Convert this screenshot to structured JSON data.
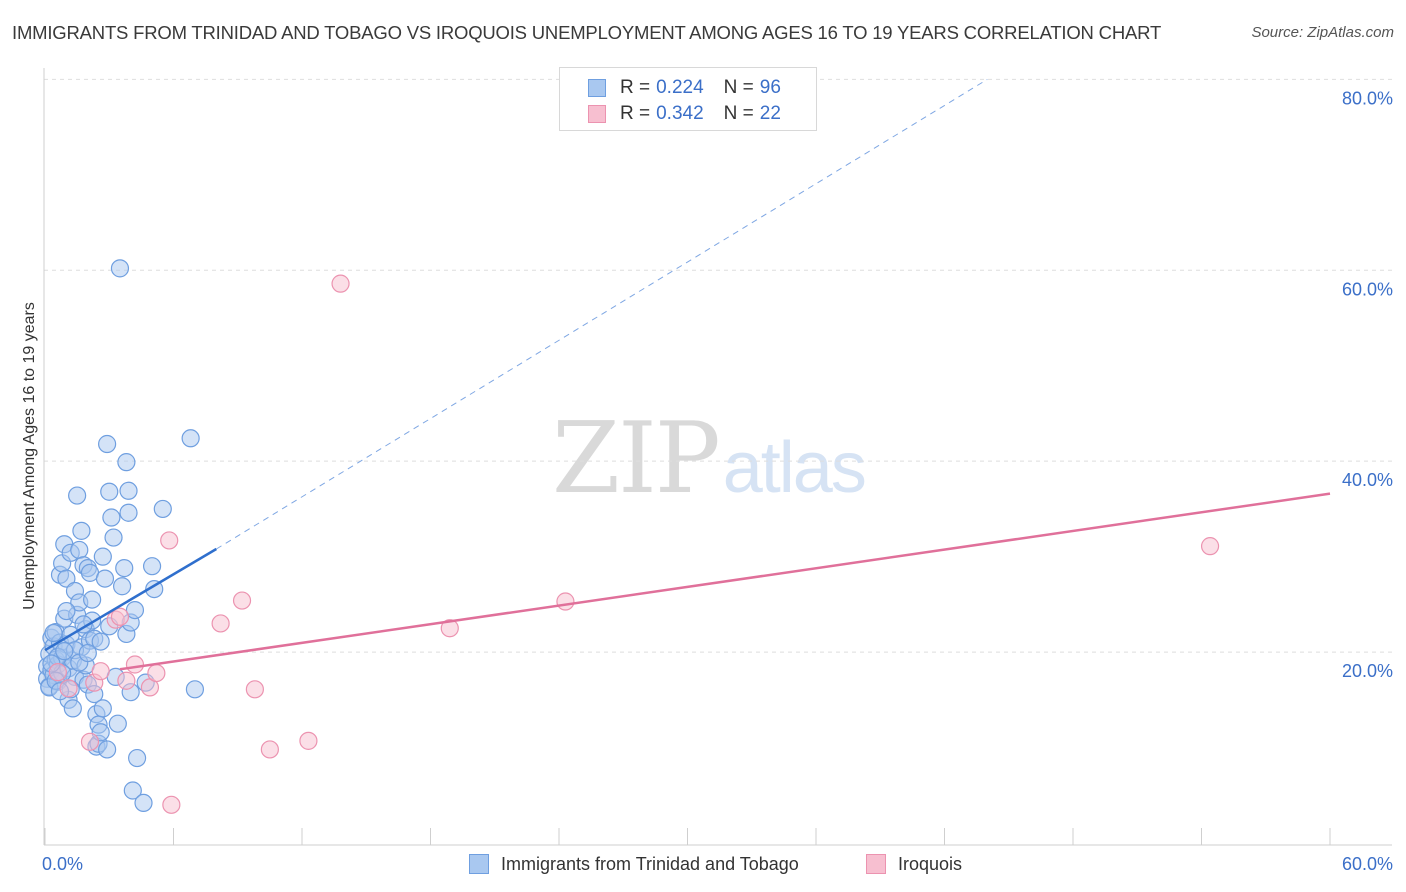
{
  "header": {
    "title": "IMMIGRANTS FROM TRINIDAD AND TOBAGO VS IROQUOIS UNEMPLOYMENT AMONG AGES 16 TO 19 YEARS CORRELATION CHART",
    "source": "Source: ZipAtlas.com"
  },
  "watermark": {
    "zip": "ZIP",
    "atlas": "atlas"
  },
  "legend": {
    "r_label": "R =",
    "n_label": "N =",
    "rows": [
      {
        "r": "0.224",
        "n": "96"
      },
      {
        "r": "0.342",
        "n": "22"
      }
    ]
  },
  "colors": {
    "blue_fill": "#a9c8f0",
    "blue_stroke": "#6f9fe0",
    "blue_line": "#2f6fcd",
    "pink_fill": "#f7bfd0",
    "pink_stroke": "#ec93b0",
    "pink_line": "#e0709a",
    "tick_text": "#3b6fc8",
    "grid": "#dedede"
  },
  "chart_data": {
    "type": "scatter",
    "title": "IMMIGRANTS FROM TRINIDAD AND TOBAGO VS IROQUOIS UNEMPLOYMENT AMONG AGES 16 TO 19 YEARS CORRELATION CHART",
    "xlabel": "",
    "ylabel": "Unemployment Among Ages 16 to 19 years",
    "xlim": [
      0,
      60
    ],
    "ylim": [
      0,
      80
    ],
    "x_tick_labels": [
      "0.0%",
      "60.0%"
    ],
    "y_ticks": [
      20,
      40,
      60,
      80
    ],
    "y_tick_labels": [
      "20.0%",
      "40.0%",
      "60.0%",
      "80.0%"
    ],
    "grid": true,
    "series": [
      {
        "name": "Immigrants from Trinidad and Tobago",
        "r": 0.224,
        "n": 96,
        "trend": {
          "x0": 0,
          "y0": 20.2,
          "x1": 8,
          "y1": 30.8,
          "dashed_to_x": 44,
          "dashed_to_y": 80
        },
        "points": [
          [
            0.1,
            18.5
          ],
          [
            0.1,
            17.2
          ],
          [
            0.2,
            19.8
          ],
          [
            0.2,
            16.4
          ],
          [
            0.3,
            21.5
          ],
          [
            0.3,
            18.1
          ],
          [
            0.4,
            20.6
          ],
          [
            0.4,
            17.6
          ],
          [
            0.5,
            22.1
          ],
          [
            0.5,
            19.2
          ],
          [
            0.6,
            18.7
          ],
          [
            0.6,
            16.9
          ],
          [
            0.7,
            21.0
          ],
          [
            0.7,
            28.1
          ],
          [
            0.8,
            29.3
          ],
          [
            0.8,
            19.4
          ],
          [
            0.9,
            31.3
          ],
          [
            0.9,
            23.5
          ],
          [
            1.0,
            27.7
          ],
          [
            1.0,
            20.8
          ],
          [
            1.1,
            18.3
          ],
          [
            1.1,
            15.0
          ],
          [
            1.2,
            30.4
          ],
          [
            1.2,
            21.8
          ],
          [
            1.3,
            14.1
          ],
          [
            1.3,
            19.1
          ],
          [
            1.4,
            26.4
          ],
          [
            1.4,
            17.4
          ],
          [
            1.5,
            36.4
          ],
          [
            1.5,
            23.9
          ],
          [
            1.6,
            30.7
          ],
          [
            1.6,
            25.2
          ],
          [
            1.7,
            32.7
          ],
          [
            1.7,
            20.5
          ],
          [
            1.8,
            29.1
          ],
          [
            1.8,
            17.1
          ],
          [
            1.9,
            22.4
          ],
          [
            1.9,
            18.6
          ],
          [
            2.0,
            28.8
          ],
          [
            2.0,
            16.6
          ],
          [
            2.1,
            28.3
          ],
          [
            2.1,
            21.2
          ],
          [
            2.2,
            25.5
          ],
          [
            2.2,
            23.3
          ],
          [
            2.3,
            21.4
          ],
          [
            2.3,
            15.6
          ],
          [
            2.4,
            10.1
          ],
          [
            2.4,
            13.5
          ],
          [
            2.5,
            10.4
          ],
          [
            2.5,
            12.4
          ],
          [
            2.6,
            11.6
          ],
          [
            2.6,
            21.1
          ],
          [
            2.7,
            30.0
          ],
          [
            2.7,
            14.1
          ],
          [
            2.8,
            27.7
          ],
          [
            2.9,
            9.8
          ],
          [
            2.9,
            41.8
          ],
          [
            3.0,
            36.8
          ],
          [
            3.0,
            22.7
          ],
          [
            3.1,
            34.1
          ],
          [
            3.2,
            32.0
          ],
          [
            3.3,
            17.4
          ],
          [
            3.4,
            12.5
          ],
          [
            3.5,
            60.2
          ],
          [
            3.6,
            26.9
          ],
          [
            3.7,
            28.8
          ],
          [
            3.8,
            21.9
          ],
          [
            3.8,
            39.9
          ],
          [
            3.9,
            34.6
          ],
          [
            3.9,
            36.9
          ],
          [
            4.0,
            23.1
          ],
          [
            4.0,
            15.8
          ],
          [
            4.1,
            5.5
          ],
          [
            4.2,
            24.4
          ],
          [
            4.3,
            8.9
          ],
          [
            4.6,
            4.2
          ],
          [
            4.7,
            16.8
          ],
          [
            5.0,
            29.0
          ],
          [
            5.1,
            26.6
          ],
          [
            5.5,
            35.0
          ],
          [
            6.8,
            42.4
          ],
          [
            7.0,
            16.1
          ],
          [
            0.2,
            16.3
          ],
          [
            0.4,
            22.0
          ],
          [
            0.6,
            19.5
          ],
          [
            0.8,
            17.8
          ],
          [
            1.0,
            24.3
          ],
          [
            1.2,
            16.1
          ],
          [
            1.4,
            20.2
          ],
          [
            1.6,
            18.9
          ],
          [
            1.8,
            22.9
          ],
          [
            2.0,
            19.9
          ],
          [
            0.3,
            18.8
          ],
          [
            0.5,
            17.0
          ],
          [
            0.7,
            15.9
          ],
          [
            0.9,
            20.1
          ]
        ]
      },
      {
        "name": "Iroquois",
        "r": 0.342,
        "n": 22,
        "trend": {
          "x0": 3.5,
          "y0": 18.2,
          "x1": 60,
          "y1": 36.6
        },
        "points": [
          [
            0.6,
            17.9
          ],
          [
            1.1,
            16.2
          ],
          [
            2.1,
            10.6
          ],
          [
            2.3,
            16.8
          ],
          [
            2.6,
            18.0
          ],
          [
            3.3,
            23.4
          ],
          [
            3.5,
            23.7
          ],
          [
            3.8,
            17.0
          ],
          [
            4.2,
            18.7
          ],
          [
            4.9,
            16.3
          ],
          [
            5.2,
            17.8
          ],
          [
            5.8,
            31.7
          ],
          [
            5.9,
            4.0
          ],
          [
            8.2,
            23.0
          ],
          [
            9.2,
            25.4
          ],
          [
            9.8,
            16.1
          ],
          [
            10.5,
            9.8
          ],
          [
            12.3,
            10.7
          ],
          [
            13.8,
            58.6
          ],
          [
            18.9,
            22.5
          ],
          [
            24.3,
            25.3
          ],
          [
            54.4,
            31.1
          ]
        ]
      }
    ]
  }
}
